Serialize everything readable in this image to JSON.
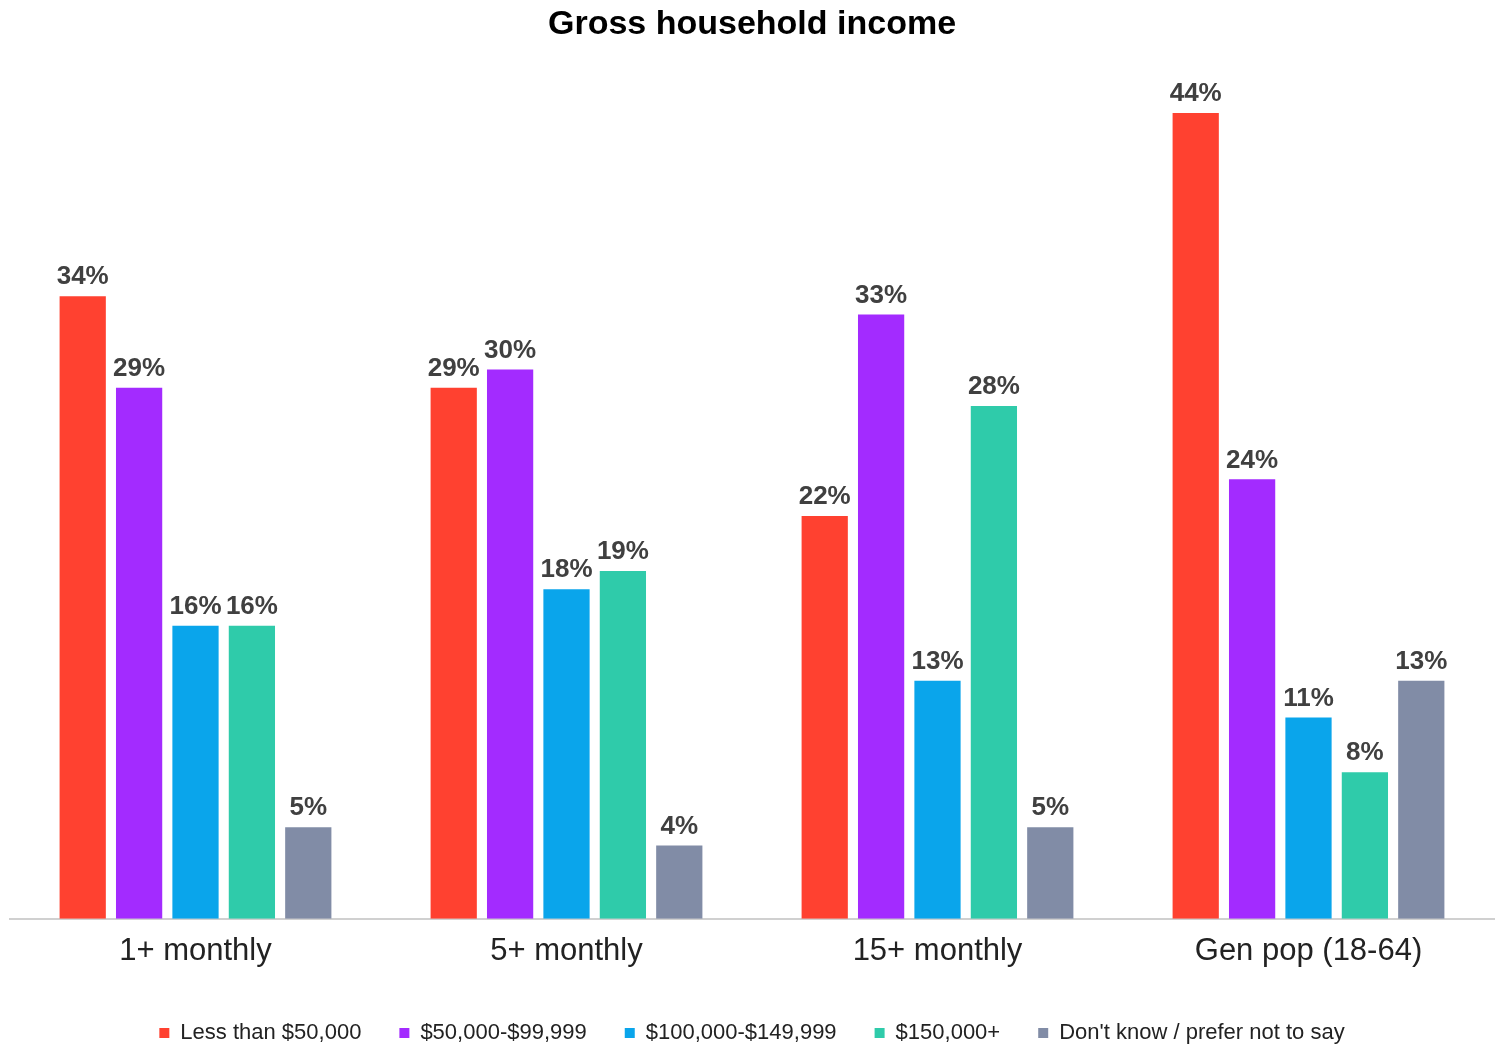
{
  "chart_data": {
    "type": "bar",
    "title": "Gross household income",
    "categories": [
      "1+ monthly",
      "5+ monthly",
      "15+ monthly",
      "Gen pop (18-64)"
    ],
    "series": [
      {
        "name": "Less than $50,000",
        "color": "#ff4130",
        "values": [
          34,
          29,
          22,
          44
        ],
        "value_labels": [
          "34%",
          "29%",
          "22%",
          "44%"
        ]
      },
      {
        "name": "$50,000-$99,999",
        "color": "#a32bff",
        "values": [
          29,
          30,
          33,
          24
        ],
        "value_labels": [
          "29%",
          "30%",
          "33%",
          "24%"
        ]
      },
      {
        "name": "$100,000-$149,999",
        "color": "#0aa5eb",
        "values": [
          16,
          18,
          13,
          11
        ],
        "value_labels": [
          "16%",
          "18%",
          "13%",
          "11%"
        ]
      },
      {
        "name": "$150,000+",
        "color": "#2fcbaa",
        "values": [
          16,
          19,
          28,
          8
        ],
        "value_labels": [
          "16%",
          "19%",
          "28%",
          "8%"
        ]
      },
      {
        "name": "Don't know / prefer not to say",
        "color": "#818ca6",
        "values": [
          5,
          4,
          5,
          13
        ],
        "value_labels": [
          "5%",
          "4%",
          "5%",
          "13%"
        ]
      }
    ],
    "legend": "bottom",
    "grid": false
  }
}
